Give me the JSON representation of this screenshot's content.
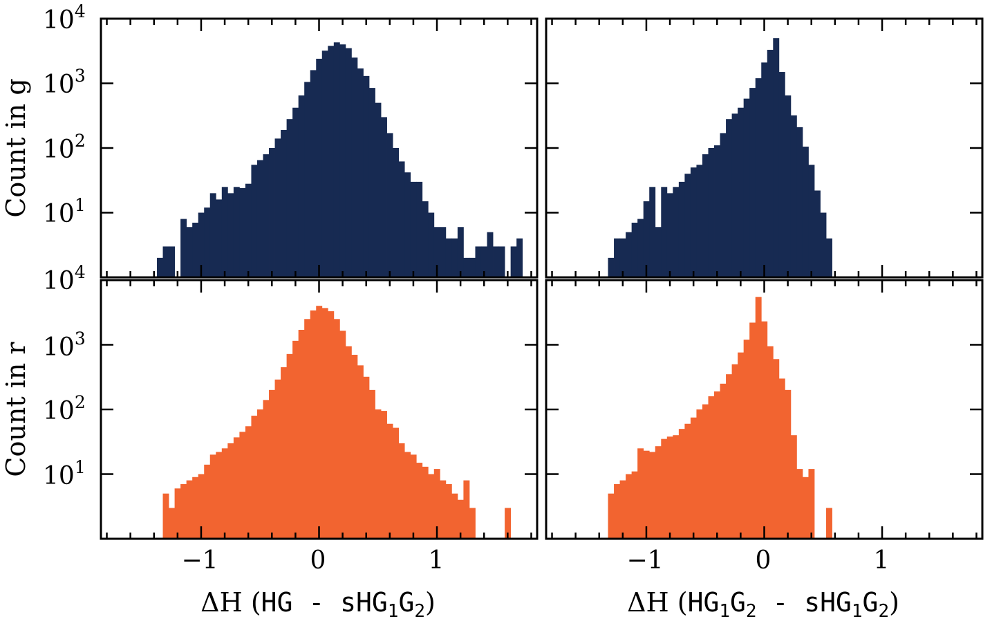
{
  "chart_data": [
    {
      "type": "bar",
      "panel": "top-left",
      "color": "#172a52",
      "ylabel": "Count in g",
      "xlabel": "",
      "yscale": "log",
      "ylim": [
        1,
        10000
      ],
      "xlim": [
        -1.85,
        1.85
      ],
      "xticks": [
        -1,
        0,
        1
      ],
      "yticks": [
        10,
        100,
        1000,
        10000
      ],
      "grid": false,
      "x": [
        -1.35,
        -1.3,
        -1.25,
        -1.2,
        -1.15,
        -1.1,
        -1.05,
        -1.0,
        -0.95,
        -0.9,
        -0.85,
        -0.8,
        -0.75,
        -0.7,
        -0.65,
        -0.6,
        -0.55,
        -0.5,
        -0.45,
        -0.4,
        -0.35,
        -0.3,
        -0.25,
        -0.2,
        -0.15,
        -0.1,
        -0.05,
        0.0,
        0.05,
        0.1,
        0.15,
        0.2,
        0.25,
        0.3,
        0.35,
        0.4,
        0.45,
        0.5,
        0.55,
        0.6,
        0.65,
        0.7,
        0.75,
        0.8,
        0.85,
        0.9,
        0.95,
        1.0,
        1.05,
        1.1,
        1.15,
        1.2,
        1.25,
        1.3,
        1.35,
        1.4,
        1.45,
        1.5,
        1.55,
        1.6,
        1.65,
        1.7
      ],
      "values": [
        2,
        3,
        3,
        0,
        8,
        6,
        7,
        10,
        12,
        20,
        16,
        25,
        20,
        25,
        24,
        28,
        55,
        65,
        80,
        100,
        140,
        190,
        280,
        420,
        650,
        1050,
        1600,
        2400,
        3200,
        3800,
        4300,
        4000,
        3500,
        2500,
        1700,
        1300,
        850,
        500,
        300,
        170,
        100,
        62,
        42,
        30,
        30,
        15,
        10,
        6,
        6,
        4,
        4,
        6,
        2,
        2,
        3,
        3,
        5,
        3,
        3,
        0,
        3,
        4
      ]
    },
    {
      "type": "bar",
      "panel": "top-right",
      "color": "#172a52",
      "xlabel": "",
      "yscale": "log",
      "ylim": [
        1,
        10000
      ],
      "xlim": [
        -1.85,
        1.85
      ],
      "xticks": [
        -1,
        0,
        1
      ],
      "yticks": [
        10,
        100,
        1000,
        10000
      ],
      "grid": false,
      "x": [
        -1.3,
        -1.25,
        -1.2,
        -1.15,
        -1.1,
        -1.05,
        -1.0,
        -0.95,
        -0.9,
        -0.85,
        -0.8,
        -0.75,
        -0.7,
        -0.65,
        -0.6,
        -0.55,
        -0.5,
        -0.45,
        -0.4,
        -0.35,
        -0.3,
        -0.25,
        -0.2,
        -0.15,
        -0.1,
        -0.05,
        0.0,
        0.05,
        0.1,
        0.15,
        0.2,
        0.25,
        0.3,
        0.35,
        0.4,
        0.45,
        0.5,
        0.55
      ],
      "values": [
        2,
        4,
        4,
        5,
        7,
        8,
        15,
        25,
        6,
        25,
        20,
        25,
        30,
        40,
        50,
        55,
        80,
        100,
        110,
        170,
        280,
        340,
        420,
        580,
        850,
        1200,
        2100,
        3300,
        5000,
        1500,
        650,
        320,
        210,
        105,
        55,
        22,
        10,
        4
      ]
    },
    {
      "type": "bar",
      "panel": "bottom-left",
      "color": "#f26430",
      "ylabel": "Count in r",
      "xlabel": "ΔH (HG - sHG1G2)",
      "yscale": "log",
      "ylim": [
        1,
        10000
      ],
      "xlim": [
        -1.85,
        1.85
      ],
      "xticks": [
        -1,
        0,
        1
      ],
      "yticks": [
        10,
        100,
        1000,
        10000
      ],
      "grid": false,
      "x": [
        -1.3,
        -1.25,
        -1.2,
        -1.15,
        -1.1,
        -1.05,
        -1.0,
        -0.95,
        -0.9,
        -0.85,
        -0.8,
        -0.75,
        -0.7,
        -0.65,
        -0.6,
        -0.55,
        -0.5,
        -0.45,
        -0.4,
        -0.35,
        -0.3,
        -0.25,
        -0.2,
        -0.15,
        -0.1,
        -0.05,
        0.0,
        0.05,
        0.1,
        0.15,
        0.2,
        0.25,
        0.3,
        0.35,
        0.4,
        0.45,
        0.5,
        0.55,
        0.6,
        0.65,
        0.7,
        0.75,
        0.8,
        0.85,
        0.9,
        0.95,
        1.0,
        1.05,
        1.1,
        1.15,
        1.2,
        1.25,
        1.3,
        1.35,
        1.4,
        1.45,
        1.5,
        1.55,
        1.6,
        1.65
      ],
      "values": [
        5,
        3,
        6,
        7,
        8,
        9,
        10,
        14,
        20,
        22,
        25,
        30,
        37,
        45,
        55,
        80,
        100,
        140,
        200,
        290,
        450,
        720,
        1150,
        1700,
        2500,
        3400,
        4000,
        3700,
        3300,
        2500,
        1650,
        950,
        700,
        480,
        320,
        200,
        100,
        95,
        60,
        52,
        30,
        22,
        20,
        15,
        13,
        10,
        12,
        8,
        7,
        5,
        4,
        8,
        3,
        0,
        0,
        0,
        0,
        0,
        3,
        0
      ]
    },
    {
      "type": "bar",
      "panel": "bottom-right",
      "color": "#f26430",
      "xlabel": "ΔH (HG1G2 - sHG1G2)",
      "yscale": "log",
      "ylim": [
        1,
        10000
      ],
      "xlim": [
        -1.85,
        1.85
      ],
      "xticks": [
        -1,
        0,
        1
      ],
      "yticks": [
        10,
        100,
        1000,
        10000
      ],
      "grid": false,
      "x": [
        -1.3,
        -1.25,
        -1.2,
        -1.15,
        -1.1,
        -1.05,
        -1.0,
        -0.95,
        -0.9,
        -0.85,
        -0.8,
        -0.75,
        -0.7,
        -0.65,
        -0.6,
        -0.55,
        -0.5,
        -0.45,
        -0.4,
        -0.35,
        -0.3,
        -0.25,
        -0.2,
        -0.15,
        -0.1,
        -0.05,
        0.0,
        0.05,
        0.1,
        0.15,
        0.2,
        0.25,
        0.3,
        0.35,
        0.4,
        0.45,
        0.5,
        0.55,
        0.6
      ],
      "values": [
        5,
        7,
        8,
        10,
        11,
        25,
        23,
        22,
        27,
        35,
        38,
        40,
        50,
        60,
        75,
        100,
        120,
        160,
        190,
        250,
        350,
        500,
        760,
        1200,
        2200,
        5500,
        2300,
        950,
        600,
        300,
        200,
        40,
        12,
        9,
        12,
        0,
        0,
        3,
        0
      ]
    }
  ]
}
